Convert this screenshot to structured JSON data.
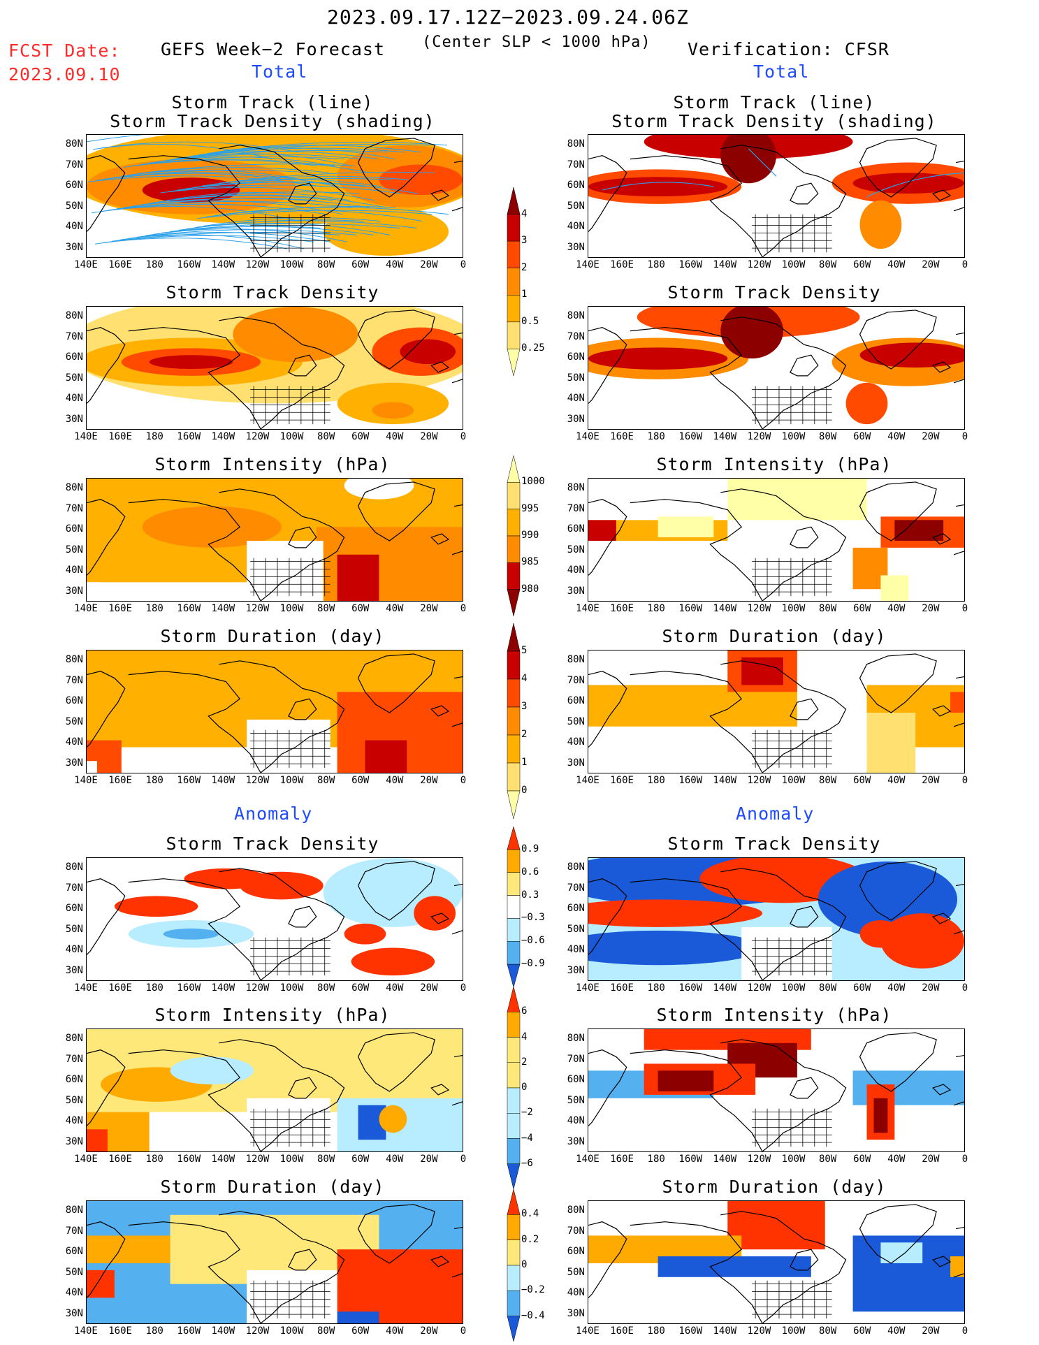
{
  "header": {
    "date_range": "2023.09.17.12Z−2023.09.24.06Z",
    "fcst_label": "FCST Date:",
    "fcst_date": "2023.09.10",
    "left_title": "GEFS Week−2 Forecast",
    "center_note": "(Center SLP < 1000 hPa)",
    "right_title": "Verification: CFSR",
    "total_label": "Total",
    "anomaly_label": "Anomaly"
  },
  "axes": {
    "y_ticks": [
      "80N",
      "70N",
      "60N",
      "50N",
      "40N",
      "30N"
    ],
    "x_ticks": [
      "140E",
      "160E",
      "180",
      "160W",
      "140W",
      "120W",
      "100W",
      "80W",
      "60W",
      "40W",
      "20W",
      "0"
    ]
  },
  "panels": {
    "track_line_title_1": "Storm Track (line)",
    "track_line_title_2": "Storm Track Density (shading)",
    "density_title": "Storm Track Density",
    "intensity_title": "Storm Intensity (hPa)",
    "duration_title": "Storm Duration (day)"
  },
  "colorbars": {
    "density_total": {
      "labels": [
        "4",
        "3",
        "2",
        "1",
        "0.5",
        "0.25"
      ]
    },
    "intensity_total": {
      "labels": [
        "1000",
        "995",
        "990",
        "985",
        "980"
      ]
    },
    "duration_total": {
      "labels": [
        "5",
        "4",
        "3",
        "2",
        "1",
        "0"
      ]
    },
    "density_anom": {
      "labels": [
        "0.9",
        "0.6",
        "0.3",
        "−0.3",
        "−0.6",
        "−0.9"
      ]
    },
    "intensity_anom": {
      "labels": [
        "6",
        "4",
        "2",
        "0",
        "−2",
        "−4",
        "−6"
      ]
    },
    "duration_anom": {
      "labels": [
        "0.4",
        "0.2",
        "0",
        "−0.2",
        "−0.4"
      ]
    }
  },
  "colors": {
    "total_scale": [
      "#ffffa8",
      "#ffe070",
      "#ffb000",
      "#ff8c00",
      "#ff4a00",
      "#c80000",
      "#8c0000"
    ],
    "anom_pos": [
      "#ffe87a",
      "#ffaa00",
      "#ff3300"
    ],
    "anom_neg": [
      "#b8ecff",
      "#55b0f0",
      "#1a5ad8"
    ],
    "track_line": "#2aa0e8"
  }
}
